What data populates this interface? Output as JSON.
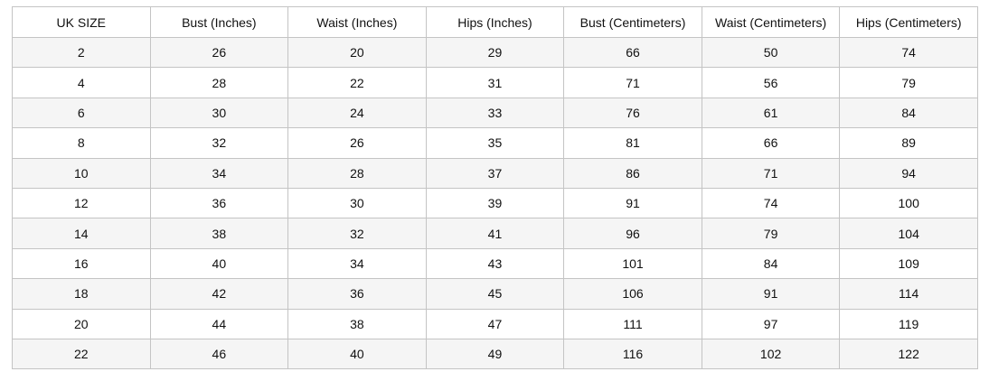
{
  "table": {
    "header": [
      "UK SIZE",
      "Bust (Inches)",
      "Waist (Inches)",
      "Hips (Inches)",
      "Bust (Centimeters)",
      "Waist (Centimeters)",
      "Hips (Centimeters)"
    ],
    "rows": [
      [
        2,
        26,
        20,
        29,
        66,
        50,
        74
      ],
      [
        4,
        28,
        22,
        31,
        71,
        56,
        79
      ],
      [
        6,
        30,
        24,
        33,
        76,
        61,
        84
      ],
      [
        8,
        32,
        26,
        35,
        81,
        66,
        89
      ],
      [
        10,
        34,
        28,
        37,
        86,
        71,
        94
      ],
      [
        12,
        36,
        30,
        39,
        91,
        74,
        100
      ],
      [
        14,
        38,
        32,
        41,
        96,
        79,
        104
      ],
      [
        16,
        40,
        34,
        43,
        101,
        84,
        109
      ],
      [
        18,
        42,
        36,
        45,
        106,
        91,
        114
      ],
      [
        20,
        44,
        38,
        47,
        111,
        97,
        119
      ],
      [
        22,
        46,
        40,
        49,
        116,
        102,
        122
      ]
    ]
  }
}
